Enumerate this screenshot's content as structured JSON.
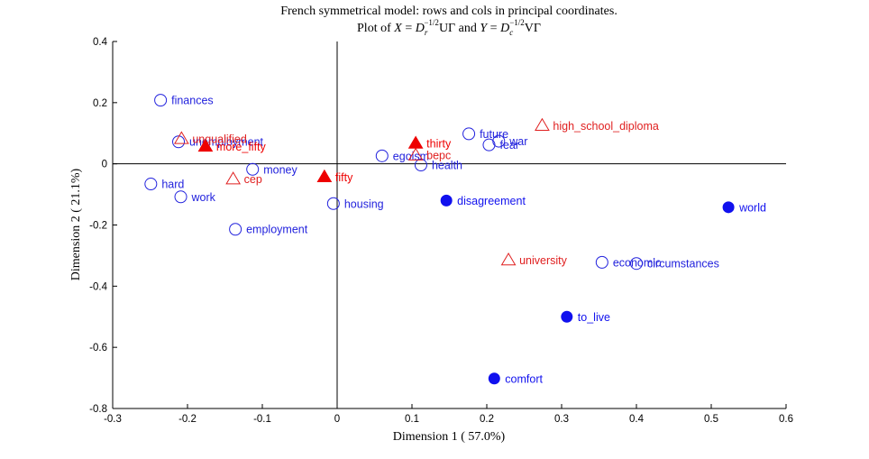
{
  "chart_data": {
    "type": "scatter",
    "title": "French symmetrical model: rows and cols in principal coordinates.",
    "subtitle_parts": [
      "Plot of ",
      "X",
      " = ",
      "D",
      "r",
      "−1/2",
      "UΓ and ",
      "Y",
      " = ",
      "D",
      "c",
      "−1/2",
      "VΓ"
    ],
    "xlabel": "Dimension  1 ( 57.0%)",
    "ylabel": "Dimension  2 ( 21.1%)",
    "xlim": [
      -0.3,
      0.6
    ],
    "ylim": [
      -0.8,
      0.4
    ],
    "xticks": [
      -0.3,
      -0.2,
      -0.1,
      0,
      0.1,
      0.2,
      0.3,
      0.4,
      0.5,
      0.6
    ],
    "yticks": [
      -0.8,
      -0.6,
      -0.4,
      -0.2,
      0,
      0.2,
      0.4
    ],
    "xtick_labels": [
      "-0.3",
      "-0.2",
      "-0.1",
      "0",
      "0.1",
      "0.2",
      "0.3",
      "0.4",
      "0.5",
      "0.6"
    ],
    "ytick_labels": [
      "-0.8",
      "-0.6",
      "-0.4",
      "-0.2",
      "0",
      "0.2",
      "0.4"
    ],
    "reference_lines": {
      "x": 0,
      "y": 0
    },
    "series": [
      {
        "marker": "circle-open",
        "color": "#2222dd",
        "points": [
          {
            "label": "finances",
            "x": -0.236,
            "y": 0.208
          },
          {
            "label": "unemployment",
            "x": -0.212,
            "y": 0.072
          },
          {
            "label": "money",
            "x": -0.113,
            "y": -0.018
          },
          {
            "label": "hard",
            "x": -0.249,
            "y": -0.066
          },
          {
            "label": "work",
            "x": -0.209,
            "y": -0.108
          },
          {
            "label": "employment",
            "x": -0.136,
            "y": -0.214
          },
          {
            "label": "housing",
            "x": -0.005,
            "y": -0.13
          },
          {
            "label": "egoism",
            "x": 0.06,
            "y": 0.026
          },
          {
            "label": "health",
            "x": 0.112,
            "y": -0.004
          },
          {
            "label": "future",
            "x": 0.176,
            "y": 0.098
          },
          {
            "label": "fear",
            "x": 0.203,
            "y": 0.062
          },
          {
            "label": "war",
            "x": 0.216,
            "y": 0.074
          },
          {
            "label": "economic",
            "x": 0.354,
            "y": -0.322
          },
          {
            "label": "circumstances",
            "x": 0.4,
            "y": -0.326
          }
        ]
      },
      {
        "marker": "circle-filled",
        "color": "#1111ee",
        "points": [
          {
            "label": "disagreement",
            "x": 0.146,
            "y": -0.12
          },
          {
            "label": "world",
            "x": 0.523,
            "y": -0.142
          },
          {
            "label": "to_live",
            "x": 0.307,
            "y": -0.5
          },
          {
            "label": "comfort",
            "x": 0.21,
            "y": -0.702
          }
        ]
      },
      {
        "marker": "triangle-open",
        "color": "#e02020",
        "points": [
          {
            "label": "unqualified",
            "x": -0.208,
            "y": 0.082
          },
          {
            "label": "cep",
            "x": -0.139,
            "y": -0.05
          },
          {
            "label": "high_school_diploma",
            "x": 0.274,
            "y": 0.125
          },
          {
            "label": "university",
            "x": 0.229,
            "y": -0.315
          },
          {
            "label": "bepc",
            "x": 0.105,
            "y": 0.028
          }
        ]
      },
      {
        "marker": "triangle-filled",
        "color": "#ee0000",
        "points": [
          {
            "label": "more_fifty",
            "x": -0.176,
            "y": 0.057
          },
          {
            "label": "fifty",
            "x": -0.017,
            "y": -0.043
          },
          {
            "label": "thirty",
            "x": 0.105,
            "y": 0.067
          }
        ]
      }
    ]
  }
}
